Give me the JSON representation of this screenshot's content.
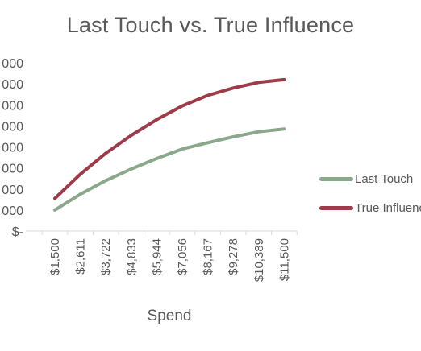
{
  "chart_data": {
    "type": "line",
    "title": "Last Touch vs. True Influence",
    "xlabel": "Spend",
    "ylabel": "",
    "categories": [
      "$1,500",
      "$2,611",
      "$3,722",
      "$4,833",
      "$5,944",
      "$7,056",
      "$8,167",
      "$9,278",
      "$10,389",
      "$11,500"
    ],
    "y_tick_labels": [
      "$-",
      "000",
      "000",
      "000",
      "000",
      "000",
      "000",
      "000",
      "000"
    ],
    "ylim": [
      0,
      8
    ],
    "grid": false,
    "legend_position": "right",
    "series": [
      {
        "name": "Last Touch",
        "color": "#8aa88a",
        "values": [
          1.0,
          1.75,
          2.4,
          2.95,
          3.45,
          3.9,
          4.2,
          4.48,
          4.72,
          4.85
        ]
      },
      {
        "name": "True Influence",
        "color": "#9e3b48",
        "values": [
          1.55,
          2.7,
          3.7,
          4.55,
          5.3,
          5.95,
          6.45,
          6.8,
          7.07,
          7.2
        ]
      }
    ]
  }
}
